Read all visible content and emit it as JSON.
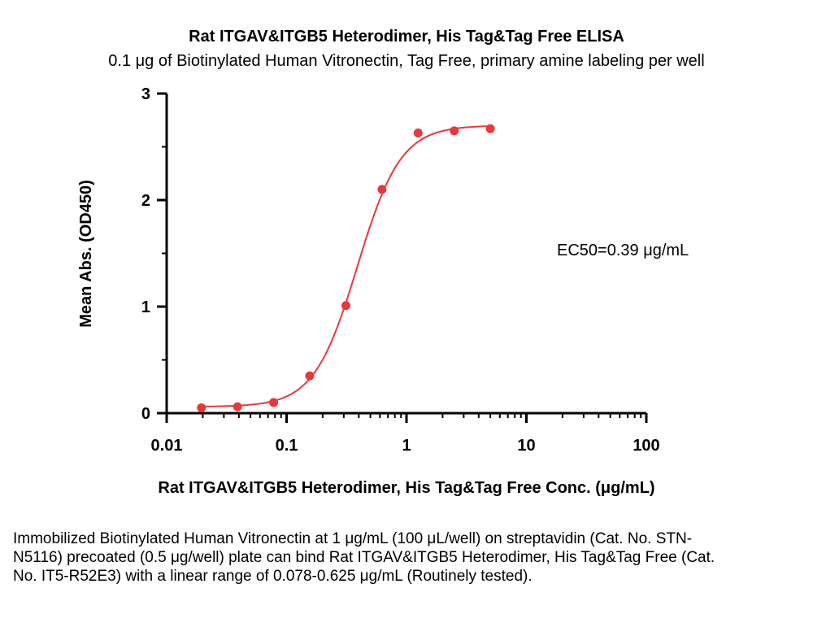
{
  "chart_data": {
    "type": "scatter",
    "title": "Rat ITGAV&ITGB5 Heterodimer, His Tag&Tag Free ELISA",
    "subtitle": "0.1 μg of Biotinylated Human Vitronectin, Tag Free, primary amine labeling per well",
    "xlabel": "Rat ITGAV&ITGB5 Heterodimer, His Tag&Tag Free Conc. (μg/mL)",
    "ylabel": "Mean Abs. (OD450)",
    "x_scale": "log",
    "xlim": [
      0.01,
      100
    ],
    "ylim": [
      0,
      3
    ],
    "x_ticks": [
      "0.01",
      "0.1",
      "1",
      "10",
      "100"
    ],
    "y_ticks": [
      "0",
      "1",
      "2",
      "3"
    ],
    "grid": false,
    "series": [
      {
        "color": "#e8383d",
        "x": [
          0.0195,
          0.039,
          0.078,
          0.156,
          0.3125,
          0.625,
          1.25,
          2.5,
          5
        ],
        "y": [
          0.05,
          0.06,
          0.1,
          0.35,
          1.01,
          2.1,
          2.63,
          2.65,
          2.67
        ]
      }
    ],
    "fit_curve": {
      "type": "4PL",
      "bottom": 0.06,
      "top": 2.7,
      "ec50": 0.39,
      "hill": 2.4
    },
    "annotation": "EC50=0.39 μg/mL"
  },
  "caption": "Immobilized Biotinylated Human Vitronectin at 1 μg/mL (100 μL/well) on streptavidin (Cat. No. STN-N5116) precoated (0.5 μg/well) plate can bind Rat ITGAV&ITGB5 Heterodimer, His Tag&Tag Free (Cat. No. IT5-R52E3) with a linear range of 0.078-0.625 μg/mL (Routinely tested)."
}
